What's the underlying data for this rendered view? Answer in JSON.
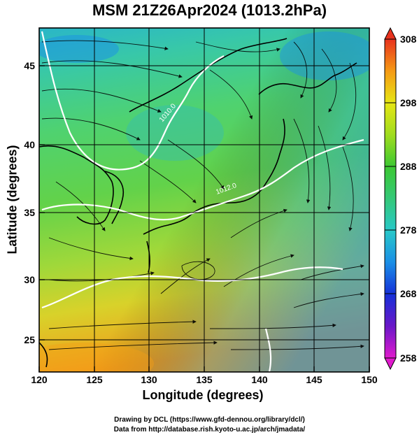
{
  "title": "MSM 21Z26Apr2024 (1013.2hPa)",
  "xlabel": "Longitude (degrees)",
  "ylabel": "Latitude  (degrees)",
  "footer": {
    "line1": "Drawing by DCL (https://www.gfd-dennou.org/library/dcl/)",
    "line2": "Data from http://database.rish.kyoto-u.ac.jp/arch/jmadata/"
  },
  "contour_labels": [
    "1010.0",
    "1012.0"
  ],
  "chart_data": {
    "type": "heatmap",
    "title": "MSM 21Z26Apr2024 (1013.2hPa)",
    "xlabel": "Longitude (degrees)",
    "ylabel": "Latitude  (degrees)",
    "xlim": [
      120,
      150
    ],
    "ylim": [
      22.5,
      47.6
    ],
    "xticks": [
      120,
      125,
      130,
      135,
      140,
      145,
      150
    ],
    "yticks": [
      25,
      30,
      35,
      40,
      45
    ],
    "colorbar": {
      "range": [
        258,
        308
      ],
      "ticks": [
        258,
        268,
        278,
        288,
        298,
        308
      ]
    }
  }
}
